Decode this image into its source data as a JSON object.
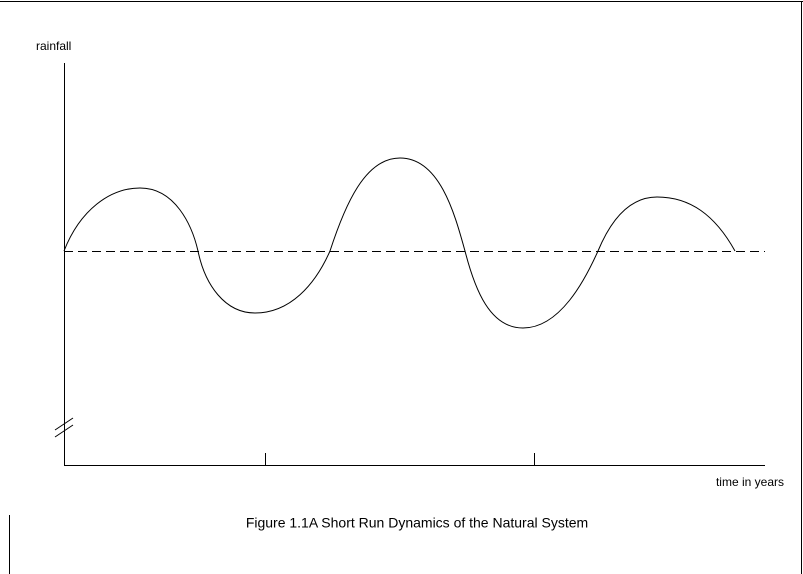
{
  "y_axis_label": "rainfall",
  "x_axis_label": "time in years",
  "caption": "Figure 1.1A Short Run Dynamics of the Natural System"
}
